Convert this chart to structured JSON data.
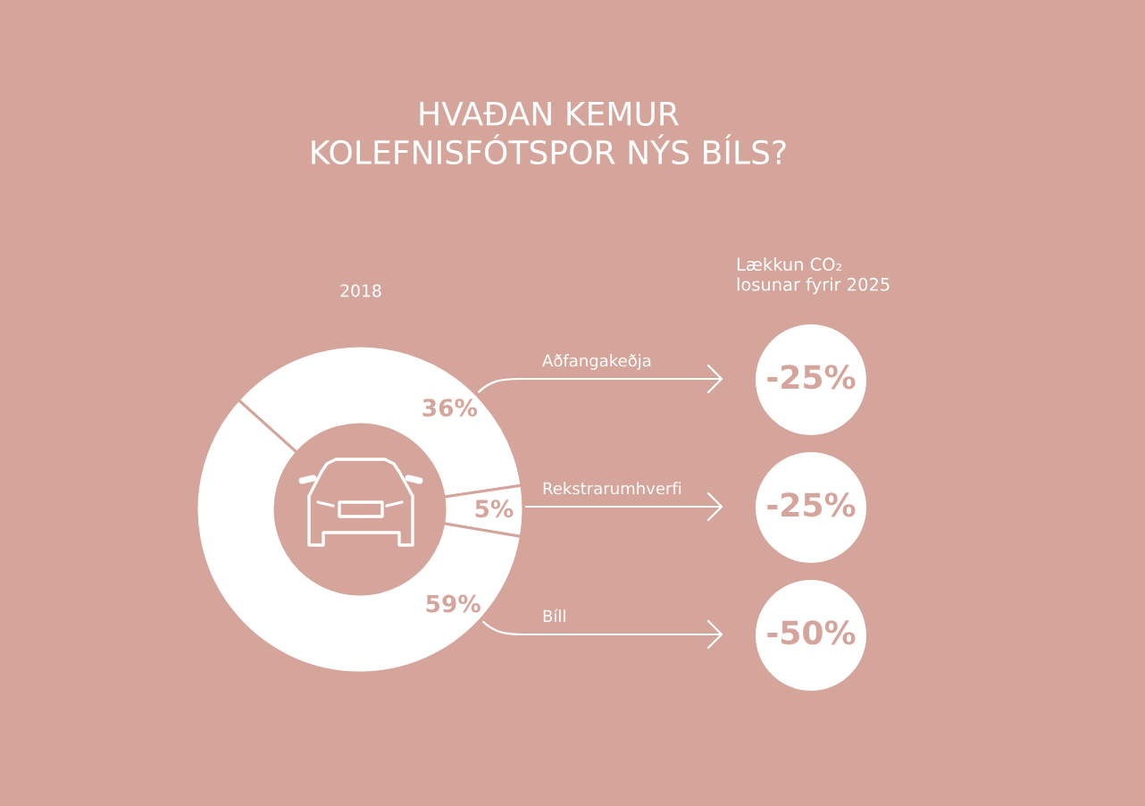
{
  "chart_data": {
    "type": "donut",
    "title": "HVAÐAN KEMUR\nKOLEFNISFÓTSPOR NÝS BÍLS?",
    "subtitle": "2018",
    "categories": [
      "Aðfangakeðja",
      "Rekstrarumhverfi",
      "Bíll"
    ],
    "values": [
      36,
      5,
      59
    ],
    "colors": [
      "#ffffff",
      "#ffffff",
      "#ffffff"
    ],
    "value_labels": [
      "36%",
      "5%",
      "59%"
    ],
    "annotations": [
      "Lækkun CO₂\nlosunar fyrir 2025",
      "-25%",
      "-25%",
      "-50%"
    ]
  }
}
